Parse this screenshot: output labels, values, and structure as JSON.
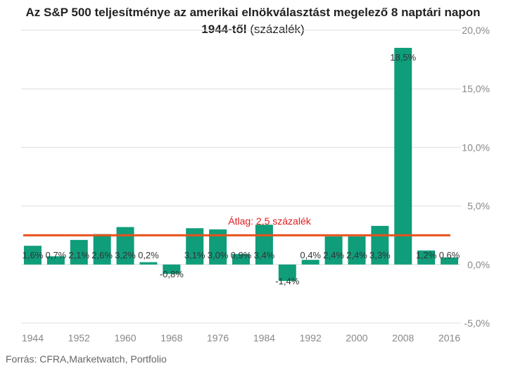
{
  "title": {
    "line1": "Az S&P 500 teljesítménye az amerikai elnökválasztást megelező 8 naptári napon",
    "line2_bold": "1944-től",
    "line2_rest": " (százalék)"
  },
  "source": "Forrás: CFRA,Marketwatch, Portfolio",
  "chart_data": {
    "type": "bar",
    "categories": [
      "1944",
      "1948",
      "1952",
      "1956",
      "1960",
      "1964",
      "1968",
      "1972",
      "1976",
      "1980",
      "1984",
      "1988",
      "1992",
      "1996",
      "2000",
      "2004",
      "2008",
      "2012",
      "2016"
    ],
    "values": [
      1.6,
      0.7,
      2.1,
      2.6,
      3.2,
      0.2,
      -0.8,
      3.1,
      3.0,
      0.9,
      3.4,
      -1.4,
      0.4,
      2.4,
      2.4,
      3.3,
      18.5,
      1.2,
      0.6
    ],
    "data_labels": [
      "1,6%",
      "0,7%",
      "2,1%",
      "2,6%",
      "3,2%",
      "0,2%",
      "-0,8%",
      "3,1%",
      "3,0%",
      "0,9%",
      "3,4%",
      "-1,4%",
      "0,4%",
      "2,4%",
      "2,4%",
      "3,3%",
      "18,5%",
      "1,2%",
      "0,6%"
    ],
    "x_tick_labels": [
      "1944",
      "1952",
      "1960",
      "1968",
      "1976",
      "1984",
      "1992",
      "2000",
      "2008",
      "2016"
    ],
    "y_ticks": [
      20,
      15,
      10,
      5,
      0,
      -5
    ],
    "y_tick_labels": [
      "20,0%",
      "15,0%",
      "10,0%",
      "5,0%",
      "0,0%",
      "-5,0%"
    ],
    "ylim": [
      -5,
      20
    ],
    "average": 2.5,
    "average_label": "Átlag: 2,5 százalék",
    "bar_color": "#0f9d7a",
    "average_color": "#e8501c",
    "grid_color": "#dddddd",
    "y_axis_position": "right",
    "grid": true
  }
}
